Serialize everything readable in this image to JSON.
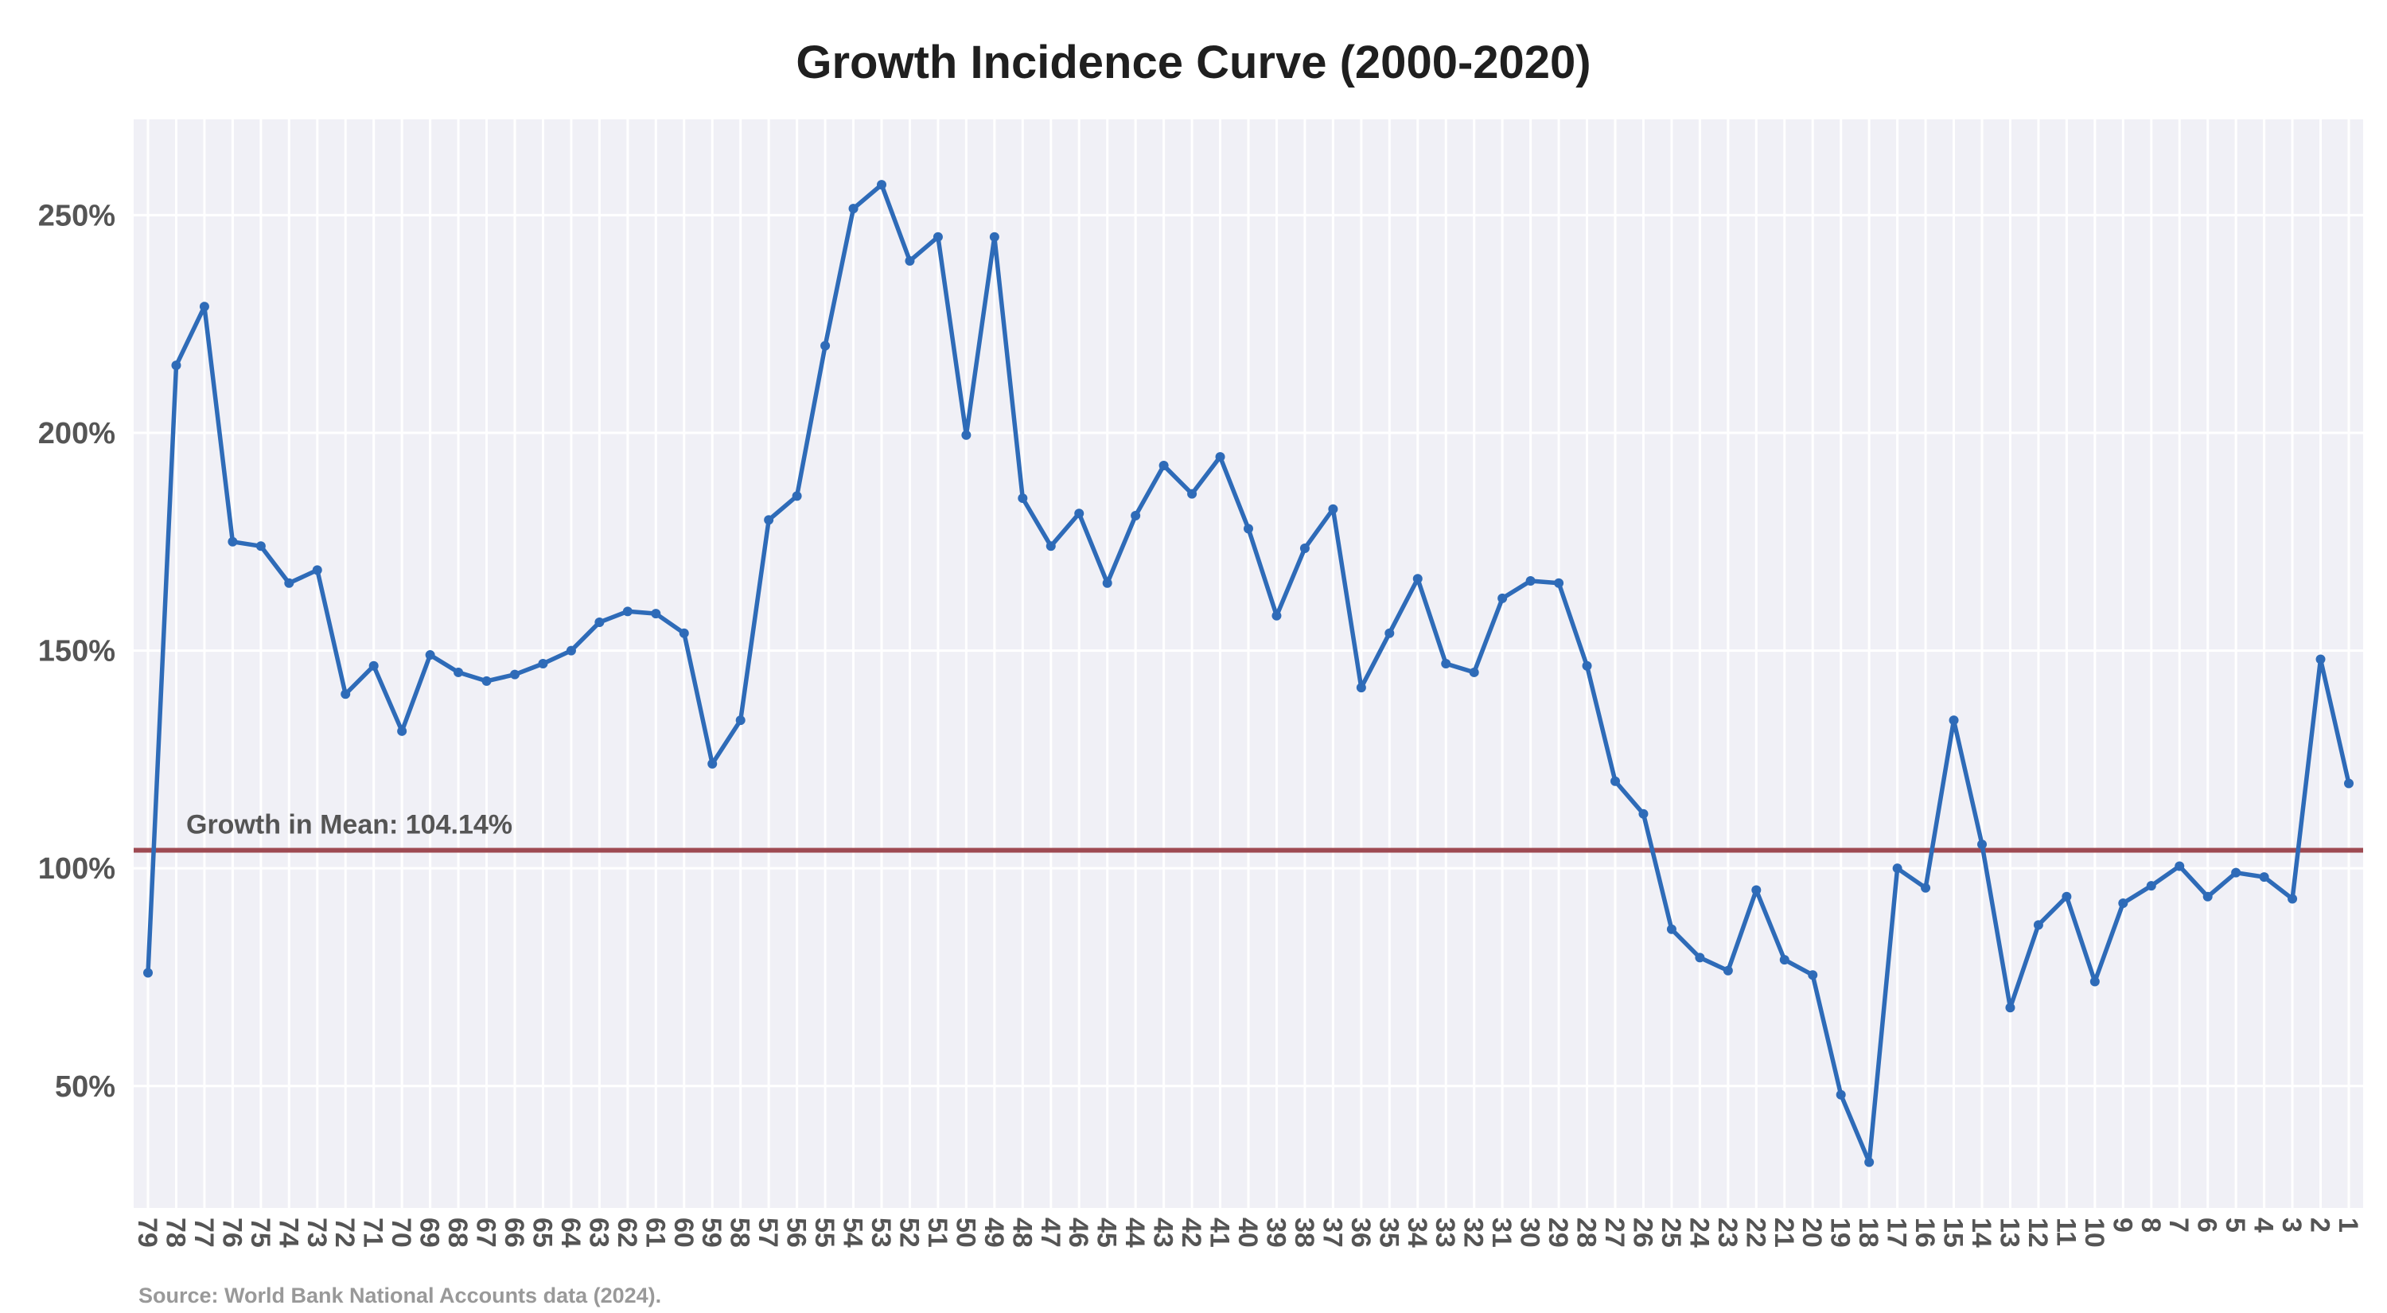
{
  "chart_data": {
    "type": "line",
    "title": "Growth Incidence Curve (2000-2020)",
    "xlabel": "",
    "ylabel": "",
    "source": "Source: World Bank National Accounts data (2024).",
    "ylim": [
      22,
      272
    ],
    "y_ticks": [
      50,
      100,
      150,
      200,
      250
    ],
    "y_tick_labels": [
      "50%",
      "100%",
      "150%",
      "200%",
      "250%"
    ],
    "grid": true,
    "colors": {
      "line": "#2e6bb8",
      "reference": "#9e4a52",
      "plot_bg": "#f0f0f6",
      "grid": "#ffffff"
    },
    "reference_line": {
      "value": 104.14,
      "label": "Growth in Mean: 104.14%"
    },
    "categories": [
      "79",
      "78",
      "77",
      "76",
      "75",
      "74",
      "73",
      "72",
      "71",
      "70",
      "69",
      "68",
      "67",
      "66",
      "65",
      "64",
      "63",
      "62",
      "61",
      "60",
      "59",
      "58",
      "57",
      "56",
      "55",
      "54",
      "53",
      "52",
      "51",
      "50",
      "49",
      "48",
      "47",
      "46",
      "45",
      "44",
      "43",
      "42",
      "41",
      "40",
      "39",
      "38",
      "37",
      "36",
      "35",
      "34",
      "33",
      "32",
      "31",
      "30",
      "29",
      "28",
      "27",
      "26",
      "25",
      "24",
      "23",
      "22",
      "21",
      "20",
      "19",
      "18",
      "17",
      "16",
      "15",
      "14",
      "13",
      "12",
      "11",
      "10",
      "9",
      "8",
      "7",
      "6",
      "5",
      "4",
      "3",
      "2",
      "1"
    ],
    "series": [
      {
        "values": [
          76,
          215.5,
          229,
          175,
          174,
          165.5,
          168.5,
          140,
          146.5,
          131.5,
          149,
          145,
          143,
          144.5,
          147,
          150,
          156.5,
          159,
          158.5,
          154,
          124,
          134,
          180,
          185.5,
          220,
          251.5,
          257,
          239.5,
          245,
          199.5,
          245,
          185,
          174,
          181.5,
          165.5,
          181,
          192.5,
          186,
          194.5,
          178,
          158,
          173.5,
          182.5,
          141.5,
          154,
          166.5,
          147,
          145,
          162,
          166,
          165.5,
          146.5,
          120,
          112.5,
          86,
          79.5,
          76.5,
          95,
          79,
          75.5,
          48,
          32.5,
          100,
          95.5,
          134,
          105.5,
          68,
          87,
          93.5,
          74,
          92,
          96,
          100.5,
          93.5,
          99,
          98,
          93,
          148,
          119.5
        ]
      }
    ]
  }
}
